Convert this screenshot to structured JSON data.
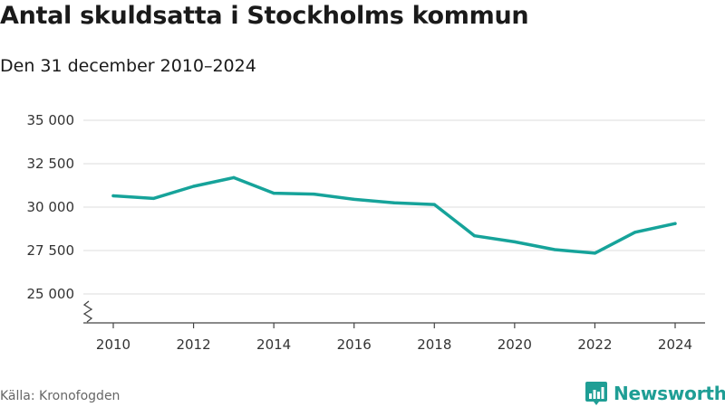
{
  "header": {
    "title": "Antal skuldsatta i Stockholms kommun",
    "subtitle": "Den 31 december 2010–2024"
  },
  "footer": {
    "source": "Källa: Kronofogden",
    "brand": "Newsworthy"
  },
  "colors": {
    "line": "#16a39a",
    "grid": "#dddddd",
    "axis": "#444444",
    "brand": "#1f9e95"
  },
  "chart_data": {
    "type": "line",
    "title": "Antal skuldsatta i Stockholms kommun",
    "subtitle": "Den 31 december 2010–2024",
    "xlabel": "",
    "ylabel": "",
    "ylim": [
      25000,
      35000
    ],
    "xlim": [
      2010,
      2024
    ],
    "grid": true,
    "y_axis_break": true,
    "yticks": [
      25000,
      27500,
      30000,
      32500,
      35000
    ],
    "ytick_labels": [
      "25 000",
      "27 500",
      "30 000",
      "32 500",
      "35 000"
    ],
    "xticks": [
      2010,
      2012,
      2014,
      2016,
      2018,
      2020,
      2022,
      2024
    ],
    "xtick_labels": [
      "2010",
      "2012",
      "2014",
      "2016",
      "2018",
      "2020",
      "2022",
      "2024"
    ],
    "series": [
      {
        "name": "Antal skuldsatta",
        "x": [
          2010,
          2011,
          2012,
          2013,
          2014,
          2015,
          2016,
          2017,
          2018,
          2019,
          2020,
          2021,
          2022,
          2023,
          2024
        ],
        "values": [
          30650,
          30500,
          31200,
          31700,
          30800,
          30750,
          30450,
          30250,
          30150,
          28350,
          28000,
          27550,
          27350,
          28550,
          29050
        ]
      }
    ]
  }
}
